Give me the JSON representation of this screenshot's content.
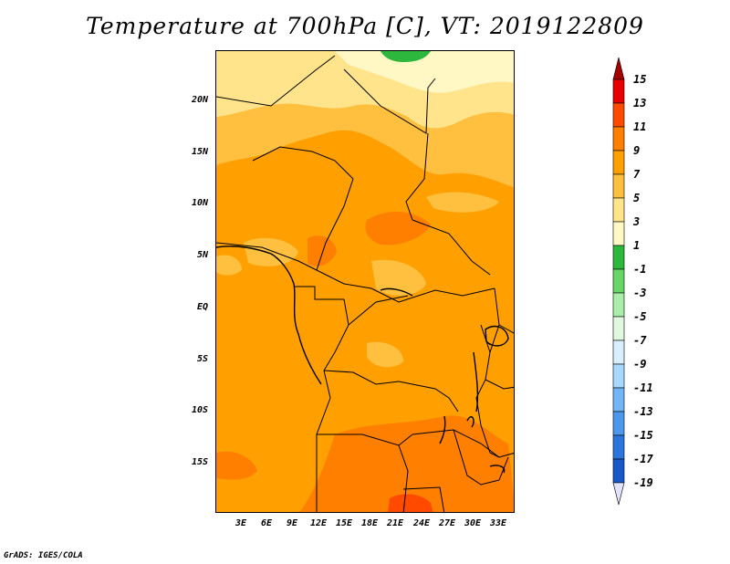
{
  "title": "Temperature at 700hPa [C], VT: 2019122809",
  "credit": "GrADS: IGES/COLA",
  "map": {
    "lat_labels": [
      "20N",
      "15N",
      "10N",
      "5N",
      "EQ",
      "5S",
      "10S",
      "15S"
    ],
    "lon_labels": [
      "3E",
      "6E",
      "9E",
      "12E",
      "15E",
      "18E",
      "21E",
      "24E",
      "27E",
      "30E",
      "33E"
    ]
  },
  "colorbar": {
    "labels": [
      "15",
      "13",
      "11",
      "9",
      "7",
      "5",
      "3",
      "1",
      "-1",
      "-3",
      "-5",
      "-7",
      "-9",
      "-11",
      "-13",
      "-15",
      "-17",
      "-19"
    ],
    "colors": [
      "#a50000",
      "#e60000",
      "#ff4a00",
      "#ff7f00",
      "#ffa000",
      "#ffbf3f",
      "#ffe48c",
      "#fff8c4",
      "#2db83d",
      "#67d667",
      "#a9eda9",
      "#e0f8e0",
      "#d9efff",
      "#a8d8ff",
      "#72b4f5",
      "#4d97ec",
      "#2c75dd",
      "#1857c7",
      "#0d3aa7",
      "#0a1f7a",
      "#e2e4fb"
    ]
  },
  "palette": {
    "t3_5": "#fff8c4",
    "t5_7": "#ffe48c",
    "t7_9": "#ffbf3f",
    "t9_11": "#ffa000",
    "t11_13": "#ff7f00",
    "t13_15": "#ff4a00",
    "t1_3": "#2db83d"
  }
}
